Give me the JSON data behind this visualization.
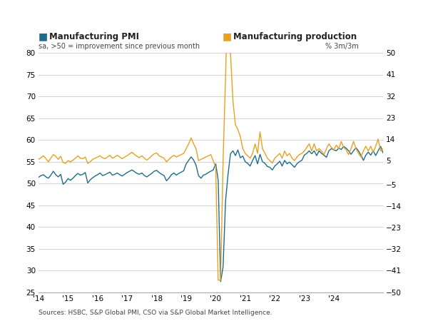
{
  "legend_left_label": "Manufacturing PMI",
  "legend_left_sublabel": "sa, >50 = improvement since previous month",
  "legend_right_label": "Manufacturing production",
  "legend_right_sublabel": "% 3m/3m",
  "source": "Sources: HSBC, S&P Global PMI, CSO via S&P Global Market Intelligence.",
  "pmi_color": "#1c6d8c",
  "prod_color": "#e8a020",
  "background_color": "#ffffff",
  "left_ylim": [
    25,
    80
  ],
  "right_ylim": [
    -50,
    50
  ],
  "left_yticks": [
    25,
    30,
    35,
    40,
    45,
    50,
    55,
    60,
    65,
    70,
    75,
    80
  ],
  "right_yticks": [
    -50,
    -41,
    -32,
    -23,
    -14,
    -5,
    5,
    14,
    23,
    32,
    41,
    50
  ],
  "xtick_labels": [
    "'14",
    "'15",
    "'16",
    "'17",
    "'18",
    "'19",
    "'20",
    "'21",
    "'22",
    "'23",
    "'24"
  ],
  "year_tick_positions": [
    0,
    12,
    24,
    36,
    48,
    60,
    72,
    84,
    96,
    108,
    120
  ],
  "pmi_data": [
    51.4,
    51.8,
    52.0,
    51.5,
    51.2,
    51.9,
    52.8,
    52.0,
    51.5,
    52.1,
    49.8,
    50.3,
    51.1,
    50.7,
    51.2,
    51.8,
    52.3,
    51.9,
    52.1,
    52.5,
    50.1,
    50.8,
    51.3,
    51.7,
    52.0,
    52.4,
    51.8,
    52.0,
    52.3,
    52.6,
    51.9,
    52.1,
    52.4,
    52.0,
    51.7,
    52.1,
    52.5,
    52.8,
    53.1,
    52.7,
    52.3,
    52.1,
    52.4,
    51.8,
    51.5,
    51.9,
    52.3,
    52.8,
    53.0,
    52.5,
    52.1,
    51.8,
    50.6,
    51.2,
    52.0,
    52.4,
    51.9,
    52.3,
    52.6,
    52.9,
    54.5,
    55.3,
    56.1,
    55.4,
    54.2,
    51.8,
    51.2,
    51.9,
    52.1,
    52.5,
    52.8,
    53.1,
    54.5,
    50.8,
    27.4,
    30.8,
    46.0,
    52.0,
    56.8,
    57.5,
    56.4,
    57.7,
    55.9,
    56.3,
    55.0,
    54.6,
    54.0,
    55.3,
    56.4,
    54.5,
    56.7,
    55.0,
    54.6,
    53.9,
    53.7,
    53.1,
    54.0,
    54.5,
    55.1,
    54.0,
    55.3,
    54.5,
    54.9,
    54.3,
    53.7,
    54.5,
    55.0,
    55.3,
    56.5,
    56.9,
    57.5,
    56.8,
    57.5,
    56.4,
    57.5,
    56.9,
    56.5,
    56.0,
    57.5,
    58.0,
    57.7,
    57.5,
    58.1,
    57.8,
    58.5,
    58.1,
    57.5,
    56.7,
    57.5,
    58.2,
    57.5,
    56.5,
    55.3,
    56.5,
    57.2,
    56.5,
    57.5,
    56.4,
    57.5,
    58.5,
    57.0
  ],
  "prod_data": [
    5.5,
    6.2,
    7.0,
    5.8,
    4.5,
    6.0,
    7.5,
    6.8,
    5.5,
    6.8,
    4.2,
    3.8,
    5.0,
    4.5,
    5.2,
    6.0,
    7.0,
    6.0,
    5.8,
    6.5,
    3.8,
    4.5,
    5.5,
    6.0,
    6.5,
    7.0,
    6.2,
    5.8,
    6.5,
    7.2,
    6.0,
    6.5,
    7.2,
    6.5,
    5.8,
    6.5,
    7.0,
    7.8,
    8.5,
    7.5,
    6.8,
    6.2,
    7.0,
    6.0,
    5.2,
    6.0,
    7.0,
    7.8,
    8.2,
    7.0,
    6.5,
    6.0,
    4.5,
    5.5,
    6.5,
    7.2,
    6.5,
    7.0,
    7.5,
    8.0,
    10.0,
    12.0,
    14.5,
    12.0,
    10.0,
    5.0,
    5.5,
    6.0,
    6.5,
    7.0,
    7.5,
    5.0,
    2.0,
    -45.0,
    -45.0,
    5.0,
    40.0,
    80.0,
    50.0,
    30.0,
    20.0,
    18.0,
    15.0,
    10.0,
    8.0,
    7.0,
    6.0,
    8.0,
    12.0,
    8.0,
    17.0,
    10.0,
    8.0,
    6.0,
    5.0,
    4.0,
    6.0,
    7.0,
    8.0,
    6.0,
    9.0,
    7.0,
    8.0,
    6.0,
    5.0,
    6.5,
    7.5,
    8.0,
    9.0,
    10.5,
    12.0,
    9.0,
    12.0,
    9.0,
    10.0,
    9.0,
    7.5,
    10.0,
    12.0,
    10.5,
    9.5,
    11.5,
    10.0,
    13.0,
    10.5,
    9.5,
    7.5,
    10.0,
    13.0,
    10.0,
    8.0,
    6.5,
    9.0,
    11.0,
    9.0,
    11.0,
    8.5,
    11.0,
    14.0,
    9.0,
    10.0
  ]
}
